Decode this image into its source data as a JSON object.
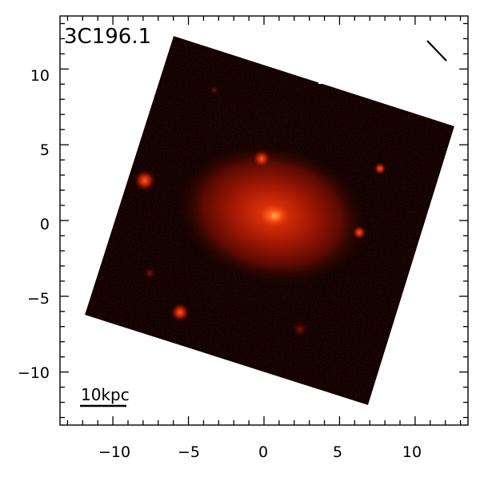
{
  "image": {
    "label": "3C196.1",
    "scale_bar_label": "10kpc",
    "scale_bar_length_kpc": 10,
    "x_ticks": [
      "−10",
      "−5",
      "0",
      "5",
      "10"
    ],
    "y_ticks": [
      "10",
      "5",
      "0",
      "−5",
      "−10"
    ],
    "x_range": [
      -13.5,
      13.5
    ],
    "y_range": [
      -13.5,
      13.5
    ],
    "colormap": [
      "#000000",
      "#3a0500",
      "#8a0f00",
      "#c81e00",
      "#ff7a30"
    ],
    "frame_color": "#000000",
    "background": "#ffffff"
  }
}
